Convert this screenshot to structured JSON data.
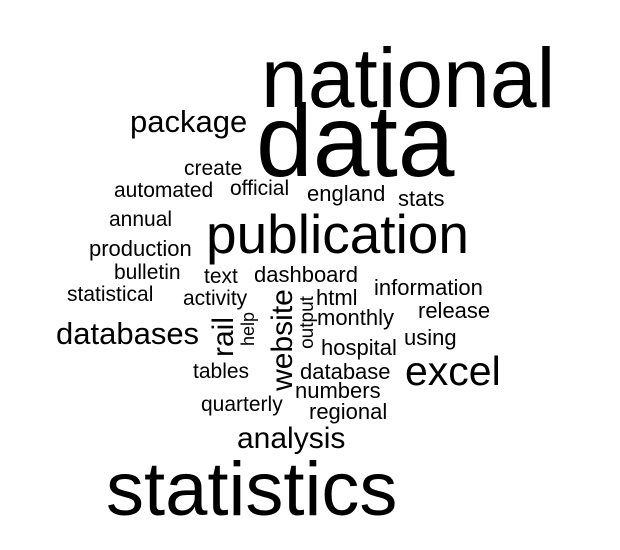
{
  "cloud": {
    "words": [
      {
        "text": "national",
        "weight": 62
      },
      {
        "text": "data",
        "weight": 100
      },
      {
        "text": "package",
        "weight": 26
      },
      {
        "text": "create",
        "weight": 17
      },
      {
        "text": "automated",
        "weight": 17
      },
      {
        "text": "official",
        "weight": 17
      },
      {
        "text": "england",
        "weight": 18
      },
      {
        "text": "stats",
        "weight": 18
      },
      {
        "text": "annual",
        "weight": 17
      },
      {
        "text": "publication",
        "weight": 45
      },
      {
        "text": "production",
        "weight": 18
      },
      {
        "text": "bulletin",
        "weight": 17
      },
      {
        "text": "text",
        "weight": 17
      },
      {
        "text": "dashboard",
        "weight": 18
      },
      {
        "text": "information",
        "weight": 18
      },
      {
        "text": "statistical",
        "weight": 17
      },
      {
        "text": "activity",
        "weight": 17
      },
      {
        "text": "rail",
        "weight": 24
      },
      {
        "text": "help",
        "weight": 15
      },
      {
        "text": "website",
        "weight": 24
      },
      {
        "text": "output",
        "weight": 16
      },
      {
        "text": "html",
        "weight": 18
      },
      {
        "text": "release",
        "weight": 18
      },
      {
        "text": "databases",
        "weight": 26
      },
      {
        "text": "monthly",
        "weight": 18
      },
      {
        "text": "using",
        "weight": 18
      },
      {
        "text": "hospital",
        "weight": 18
      },
      {
        "text": "excel",
        "weight": 33
      },
      {
        "text": "tables",
        "weight": 17
      },
      {
        "text": "database",
        "weight": 18
      },
      {
        "text": "numbers",
        "weight": 18
      },
      {
        "text": "quarterly",
        "weight": 17
      },
      {
        "text": "regional",
        "weight": 18
      },
      {
        "text": "analysis",
        "weight": 26
      },
      {
        "text": "statistics",
        "weight": 75
      }
    ]
  }
}
